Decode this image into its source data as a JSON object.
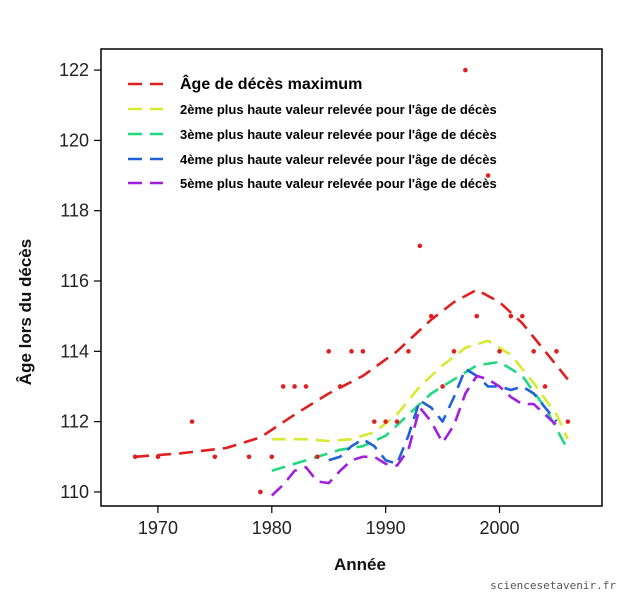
{
  "chart_data": {
    "type": "scatter",
    "xlabel": "Année",
    "ylabel": "Âge lors du décès",
    "xlim": [
      1965,
      2009
    ],
    "ylim": [
      109.6,
      122.6
    ],
    "xticks": [
      1970,
      1980,
      1990,
      2000
    ],
    "yticks": [
      110,
      112,
      114,
      116,
      118,
      120,
      122
    ],
    "grid": false,
    "legend_position": "top-left",
    "points": {
      "color": "#e02020",
      "x": [
        1968,
        1970,
        1973,
        1975,
        1978,
        1979,
        1980,
        1981,
        1982,
        1983,
        1984,
        1985,
        1986,
        1987,
        1988,
        1989,
        1990,
        1991,
        1992,
        1993,
        1994,
        1995,
        1996,
        1997,
        1998,
        1999,
        2000,
        2001,
        2002,
        2003,
        2004,
        2005,
        2006
      ],
      "y": [
        111,
        111,
        112,
        111,
        111,
        110,
        111,
        113,
        113,
        113,
        111,
        114,
        113,
        114,
        114,
        112,
        112,
        112,
        114,
        117,
        115,
        113,
        114,
        122,
        115,
        119,
        114,
        115,
        115,
        114,
        113,
        114,
        112
      ]
    },
    "series": [
      {
        "name": "Âge de décès maximum",
        "color": "#e02020",
        "x": [
          1968,
          1972,
          1976,
          1979,
          1982,
          1985,
          1988,
          1991,
          1994,
          1996,
          1998,
          2000,
          2002,
          2004,
          2006
        ],
        "y": [
          111.0,
          111.1,
          111.25,
          111.55,
          112.2,
          112.8,
          113.3,
          114.0,
          114.9,
          115.4,
          115.75,
          115.4,
          114.8,
          114.0,
          113.2
        ]
      },
      {
        "name": "2ème plus haute valeur relevée pour l'âge de décès",
        "color": "#d6ea30",
        "x": [
          1980,
          1983,
          1985,
          1987,
          1989,
          1991,
          1993,
          1995,
          1997,
          1999,
          2001,
          2003,
          2005,
          2006
        ],
        "y": [
          111.5,
          111.5,
          111.45,
          111.5,
          111.7,
          112.2,
          113.0,
          113.6,
          114.1,
          114.3,
          113.9,
          113.1,
          112.2,
          111.5
        ]
      },
      {
        "name": "3ème plus haute valeur relevée pour l'âge de décès",
        "color": "#20d880",
        "x": [
          1980,
          1982,
          1984,
          1986,
          1988,
          1990,
          1992,
          1994,
          1996,
          1998,
          2000,
          2002,
          2004,
          2006
        ],
        "y": [
          110.6,
          110.8,
          111.0,
          111.2,
          111.3,
          111.6,
          112.2,
          112.8,
          113.2,
          113.6,
          113.7,
          113.3,
          112.4,
          111.2
        ]
      },
      {
        "name": "4ème plus haute valeur relevée pour l'âge de décès",
        "color": "#2060d8",
        "x": [
          1985,
          1986,
          1987,
          1988,
          1989,
          1990,
          1991,
          1992,
          1993,
          1994,
          1995,
          1996,
          1997,
          1998,
          1999,
          2000,
          2001,
          2002,
          2003,
          2004,
          2005
        ],
        "y": [
          110.9,
          111.0,
          111.3,
          111.5,
          111.3,
          110.9,
          110.8,
          111.6,
          112.6,
          112.4,
          112.0,
          112.7,
          113.5,
          113.3,
          113.0,
          113.0,
          112.9,
          113.0,
          112.8,
          112.4,
          112.0
        ]
      },
      {
        "name": "5ème plus haute valeur relevée pour l'âge de décès",
        "color": "#a020e0",
        "x": [
          1980,
          1981,
          1982,
          1983,
          1984,
          1985,
          1986,
          1987,
          1988,
          1989,
          1990,
          1991,
          1992,
          1993,
          1994,
          1995,
          1996,
          1997,
          1998,
          1999,
          2000,
          2001,
          2002,
          2003,
          2004,
          2005
        ],
        "y": [
          109.9,
          110.2,
          110.6,
          110.7,
          110.3,
          110.25,
          110.6,
          110.9,
          111.0,
          111.0,
          110.8,
          110.75,
          111.2,
          112.4,
          112.0,
          111.4,
          111.9,
          112.8,
          113.3,
          113.2,
          113.0,
          112.7,
          112.5,
          112.5,
          112.2,
          111.9
        ]
      }
    ]
  },
  "credit": "sciencesetavenir.fr"
}
